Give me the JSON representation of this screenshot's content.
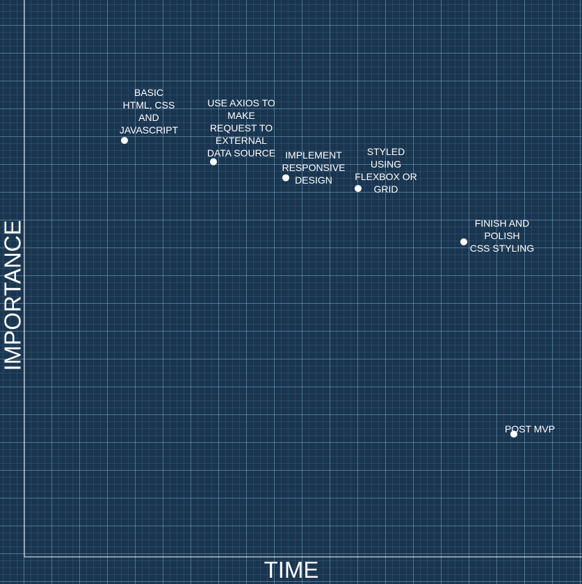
{
  "chart_data": {
    "type": "scatter",
    "xlabel": "TIME",
    "ylabel": "IMPORTANCE",
    "grid": true,
    "colors": {
      "background": "#1a3550",
      "grid": "#96cdeb",
      "axis": "#ffffff",
      "point": "#ffffff",
      "text": "#ffffff"
    },
    "points": [
      {
        "label": "BASIC\nHTML, CSS\nAND\nJAVASCRIPT",
        "x": 1.8,
        "y": 7.8
      },
      {
        "label": "USE AXIOS TO\nMAKE\nREQUEST TO\nEXTERNAL\nDATA SOURCE",
        "x": 3.4,
        "y": 7.4
      },
      {
        "label": "IMPLEMENT\nRESPONSIVE\nDESIGN",
        "x": 4.7,
        "y": 7.1
      },
      {
        "label": "STYLED\nUSING\nFLEXBOX OR\nGRID",
        "x": 6.0,
        "y": 6.9
      },
      {
        "label": "FINISH AND POLISH\nCSS STYLING",
        "x": 7.9,
        "y": 5.9
      },
      {
        "label": "POST MVP",
        "x": 8.8,
        "y": 2.3
      }
    ]
  }
}
